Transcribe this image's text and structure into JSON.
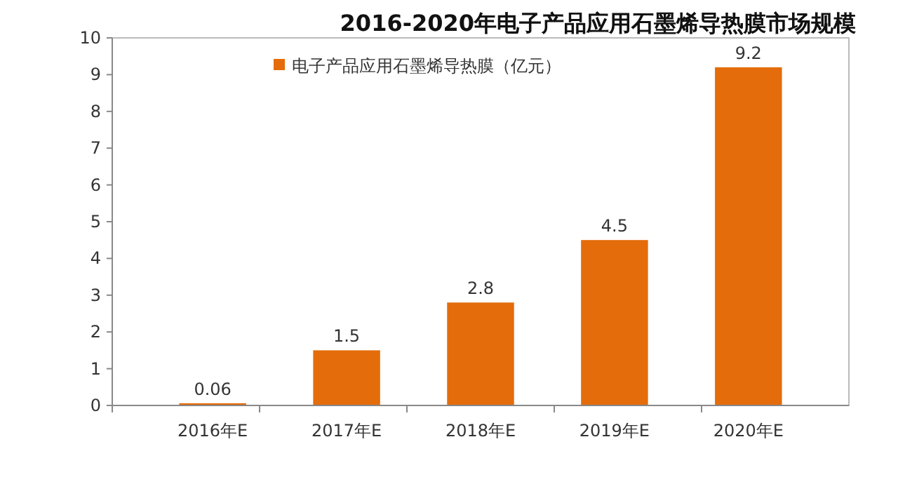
{
  "chart_data": {
    "type": "bar",
    "title": "2016-2020年电子产品应用石墨烯导热膜市场规模",
    "categories": [
      "2016年E",
      "2017年E",
      "2018年E",
      "2019年E",
      "2020年E"
    ],
    "series": [
      {
        "name": "电子产品应用石墨烯导热膜（亿元）",
        "color": "#e46c0a",
        "values": [
          0.06,
          1.5,
          2.8,
          4.5,
          9.2
        ]
      }
    ],
    "ylim": [
      0,
      10
    ],
    "yticks": [
      0,
      1,
      2,
      3,
      4,
      5,
      6,
      7,
      8,
      9,
      10
    ],
    "grid": false,
    "legend": "top left",
    "data_labels": true
  }
}
